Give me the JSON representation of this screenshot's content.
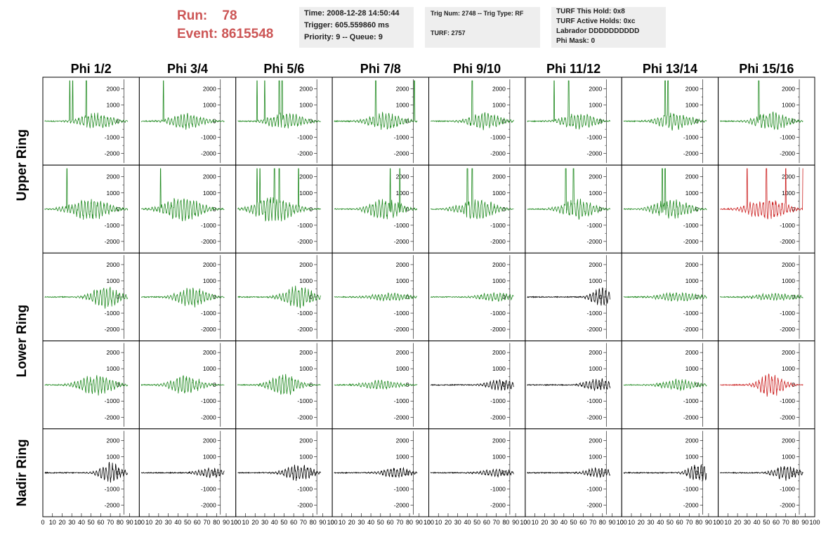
{
  "run_info": {
    "run_label": "Run:",
    "run_value": "78",
    "event_label": "Event:",
    "event_value": "8615548"
  },
  "info_box_1": [
    "Time: 2008-12-28 14:50:44",
    "Trigger: 605.559860 ms",
    "Priority: 9 -- Queue: 9"
  ],
  "info_box_2": [
    "Trig Num: 2748 -- Trig Type: RF",
    "TURF: 2757"
  ],
  "info_box_3": [
    "TURF This Hold: 0x8",
    "TURF Active Holds: 0xc",
    "Labrador DDDDDDDDDD",
    "Phi Mask: 0"
  ],
  "colors": {
    "header": "#cc5555",
    "normal": "#228B22",
    "triggered": "#cc2222",
    "inactive": "#000000"
  },
  "chart_data": {
    "type": "line",
    "columns": [
      "Phi 1/2",
      "Phi 3/4",
      "Phi 5/6",
      "Phi 7/8",
      "Phi 9/10",
      "Phi 11/12",
      "Phi 13/14",
      "Phi 15/16"
    ],
    "rows": [
      "Upper Ring",
      "Lower Ring",
      "Nadir Ring"
    ],
    "xlim": [
      0,
      100
    ],
    "ylim": [
      -2500,
      2500
    ],
    "y_ticks": [
      "2000",
      "1000",
      "0",
      "-1000",
      "-2000"
    ],
    "x_ticks": [
      "0",
      "10",
      "20",
      "30",
      "40",
      "50",
      "60",
      "70",
      "80",
      "90",
      "100"
    ],
    "panels": [
      [
        {
          "amp": 550,
          "center": 55,
          "width": 40,
          "color": "green",
          "spikes": [
            28,
            31,
            45
          ]
        },
        {
          "amp": 500,
          "center": 50,
          "width": 42,
          "color": "green",
          "spikes": [
            25
          ]
        },
        {
          "amp": 550,
          "center": 52,
          "width": 42,
          "color": "green",
          "spikes": [
            22,
            30,
            45,
            48
          ]
        },
        {
          "amp": 550,
          "center": 55,
          "width": 40,
          "color": "green",
          "spikes": [
            45,
            85
          ]
        },
        {
          "amp": 550,
          "center": 58,
          "width": 38,
          "color": "green",
          "spikes": [
            45
          ]
        },
        {
          "amp": 550,
          "center": 55,
          "width": 40,
          "color": "green",
          "spikes": [
            30,
            45
          ]
        },
        {
          "amp": 550,
          "center": 55,
          "width": 40,
          "color": "green",
          "spikes": [
            45,
            48
          ]
        },
        {
          "amp": 600,
          "center": 55,
          "width": 40,
          "color": "green",
          "spikes": [
            42
          ]
        }
      ],
      [
        {
          "amp": 750,
          "center": 48,
          "width": 46,
          "color": "green",
          "spikes": [
            25
          ]
        },
        {
          "amp": 800,
          "center": 45,
          "width": 46,
          "color": "green",
          "spikes": [
            22
          ]
        },
        {
          "amp": 850,
          "center": 40,
          "width": 46,
          "color": "green",
          "spikes": [
            22,
            25,
            40,
            45,
            65
          ]
        },
        {
          "amp": 650,
          "center": 55,
          "width": 40,
          "color": "green",
          "spikes": [
            60,
            70
          ]
        },
        {
          "amp": 700,
          "center": 50,
          "width": 42,
          "color": "green",
          "spikes": [
            40,
            45
          ]
        },
        {
          "amp": 650,
          "center": 55,
          "width": 40,
          "color": "green",
          "spikes": [
            42,
            50
          ]
        },
        {
          "amp": 650,
          "center": 52,
          "width": 42,
          "color": "green",
          "spikes": [
            42,
            45
          ]
        },
        {
          "amp": 750,
          "center": 50,
          "width": 44,
          "color": "red",
          "spikes": [
            30,
            50,
            70,
            88
          ]
        }
      ],
      [
        {
          "amp": 700,
          "center": 65,
          "width": 34,
          "color": "green",
          "spikes": []
        },
        {
          "amp": 650,
          "center": 55,
          "width": 36,
          "color": "green",
          "spikes": []
        },
        {
          "amp": 700,
          "center": 65,
          "width": 36,
          "color": "green",
          "spikes": []
        },
        {
          "amp": 250,
          "center": 60,
          "width": 50,
          "color": "green",
          "spikes": []
        },
        {
          "amp": 300,
          "center": 70,
          "width": 40,
          "color": "green",
          "spikes": []
        },
        {
          "amp": 650,
          "center": 78,
          "width": 22,
          "color": "black",
          "spikes": []
        },
        {
          "amp": 300,
          "center": 60,
          "width": 50,
          "color": "green",
          "spikes": []
        },
        {
          "amp": 250,
          "center": 60,
          "width": 50,
          "color": "green",
          "spikes": []
        }
      ],
      [
        {
          "amp": 650,
          "center": 55,
          "width": 40,
          "color": "green",
          "spikes": []
        },
        {
          "amp": 650,
          "center": 48,
          "width": 36,
          "color": "green",
          "spikes": []
        },
        {
          "amp": 700,
          "center": 50,
          "width": 34,
          "color": "green",
          "spikes": []
        },
        {
          "amp": 300,
          "center": 50,
          "width": 44,
          "color": "green",
          "spikes": []
        },
        {
          "amp": 350,
          "center": 75,
          "width": 36,
          "color": "black",
          "spikes": []
        },
        {
          "amp": 450,
          "center": 75,
          "width": 30,
          "color": "black",
          "spikes": []
        },
        {
          "amp": 350,
          "center": 60,
          "width": 44,
          "color": "green",
          "spikes": []
        },
        {
          "amp": 750,
          "center": 55,
          "width": 30,
          "color": "red",
          "spikes": []
        }
      ],
      [
        {
          "amp": 650,
          "center": 70,
          "width": 26,
          "color": "black",
          "spikes": []
        },
        {
          "amp": 350,
          "center": 75,
          "width": 32,
          "color": "black",
          "spikes": []
        },
        {
          "amp": 550,
          "center": 65,
          "width": 34,
          "color": "black",
          "spikes": []
        },
        {
          "amp": 350,
          "center": 65,
          "width": 34,
          "color": "black",
          "spikes": []
        },
        {
          "amp": 250,
          "center": 70,
          "width": 36,
          "color": "black",
          "spikes": []
        },
        {
          "amp": 350,
          "center": 75,
          "width": 30,
          "color": "black",
          "spikes": []
        },
        {
          "amp": 600,
          "center": 80,
          "width": 26,
          "color": "black",
          "spikes": []
        },
        {
          "amp": 450,
          "center": 70,
          "width": 30,
          "color": "black",
          "spikes": []
        }
      ]
    ]
  }
}
